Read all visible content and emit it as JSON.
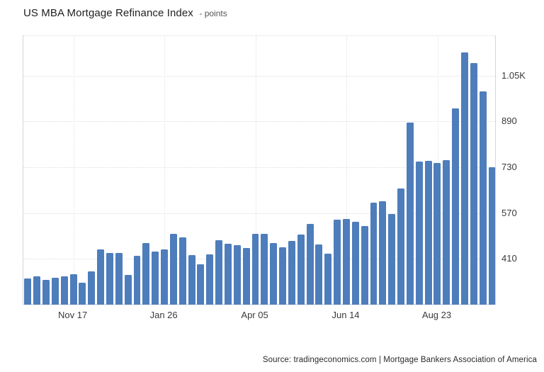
{
  "header": {
    "title": "US MBA Mortgage Refinance Index",
    "unit_label": "- points"
  },
  "footer": {
    "source": "Source: tradingeconomics.com | Mortgage Bankers Association of America"
  },
  "colors": {
    "bar": "#4e7dbb",
    "grid_dotted": "#dedede",
    "axis_solid": "#cfcfcf",
    "title_text": "#1f1f1f",
    "tick_text": "#3a3a3a"
  },
  "chart_data": {
    "type": "bar",
    "title": "US MBA Mortgage Refinance Index",
    "unit": "points",
    "frequency": "weekly",
    "grid": "dotted",
    "legend": "none",
    "ylim": [
      250,
      1190
    ],
    "y_ticks": [
      {
        "value": 410,
        "label": "410"
      },
      {
        "value": 570,
        "label": "570"
      },
      {
        "value": 730,
        "label": "730"
      },
      {
        "value": 890,
        "label": "890"
      },
      {
        "value": 1050,
        "label": "1.05K"
      }
    ],
    "x_ticks": [
      {
        "bar_index": 5,
        "label": "Nov 17"
      },
      {
        "bar_index": 15,
        "label": "Jan 26"
      },
      {
        "bar_index": 25,
        "label": "Apr 05"
      },
      {
        "bar_index": 35,
        "label": "Jun 14"
      },
      {
        "bar_index": 45,
        "label": "Aug 23"
      }
    ],
    "values": [
      342,
      350,
      336,
      343,
      350,
      357,
      326,
      367,
      443,
      431,
      431,
      354,
      420,
      466,
      436,
      443,
      497,
      486,
      424,
      392,
      425,
      476,
      463,
      458,
      448,
      497,
      497,
      466,
      451,
      473,
      496,
      532,
      461,
      428,
      547,
      549,
      539,
      525,
      607,
      611,
      566,
      656,
      886,
      749,
      751,
      746,
      755,
      935,
      1130,
      1093,
      994,
      730
    ]
  }
}
